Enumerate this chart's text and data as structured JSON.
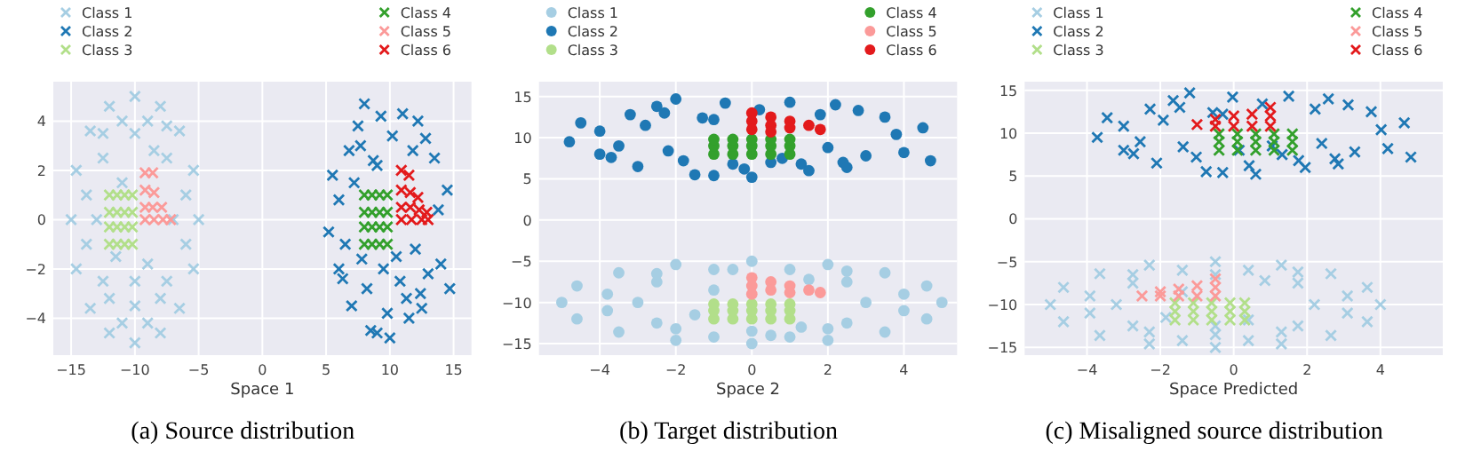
{
  "chart_data": [
    {
      "type": "scatter",
      "xlabel": "Space 1",
      "annotations": [
        "(a) Source distribution"
      ],
      "xlim": [
        -16.4,
        16.4
      ],
      "ylim": [
        -5.5,
        5.6
      ],
      "xticks": [
        -15,
        -10,
        -5,
        0,
        5,
        10,
        15
      ],
      "yticks": [
        -4,
        -2,
        0,
        2,
        4
      ],
      "grid": true,
      "legend": "top",
      "marker": "cross",
      "series": [
        {
          "name": "Class 1",
          "color": "#a6cee3",
          "x": [
            -15,
            -14.6,
            -13.5,
            -12,
            -10,
            -8,
            -6.5,
            -5.4,
            -5,
            -5.4,
            -6.5,
            -8,
            -10,
            -12,
            -13.5,
            -14.6,
            -13,
            -12.5,
            -10,
            -7.5,
            -7,
            -7.5,
            -10,
            -12.5,
            -11,
            -9,
            -11.5,
            -8.5,
            -13.8,
            -13.8,
            -6,
            -6,
            -11,
            -9,
            -11,
            -9,
            -10,
            -12,
            -8,
            -12.5,
            -7.5
          ],
          "values": [
            0,
            2,
            3.6,
            4.6,
            5,
            4.6,
            3.6,
            2,
            0,
            -2,
            -3.6,
            -4.6,
            -5,
            -4.6,
            -3.6,
            -2,
            0,
            2.5,
            3.5,
            2.5,
            0,
            -2.5,
            -3.5,
            -2.5,
            1.5,
            -1.8,
            -1.5,
            2.8,
            1,
            -1,
            1,
            -1,
            4,
            4,
            -4.2,
            -4.2,
            -2.5,
            -3.2,
            -3.2,
            3.5,
            3.8
          ]
        },
        {
          "name": "Class 2",
          "color": "#1f78b4",
          "x": [
            5.2,
            5.5,
            6,
            6.3,
            6.8,
            7,
            7.5,
            7.8,
            8,
            8.5,
            8.7,
            9,
            9.3,
            9.5,
            10,
            10.2,
            10.5,
            11,
            11.3,
            11.8,
            12,
            12.4,
            12.8,
            13,
            13.5,
            14,
            14.5,
            14.7,
            6.5,
            7.2,
            8.2,
            9.8,
            11.5,
            12.5,
            13.8,
            6,
            7.7,
            9,
            10.8,
            12.2
          ],
          "values": [
            -0.5,
            1.8,
            0.8,
            -2.4,
            2.8,
            -3.5,
            3.8,
            -1.6,
            4.7,
            -4.5,
            2.4,
            -4.6,
            4.2,
            -2,
            -4.8,
            3.4,
            -1.5,
            4.3,
            -3.2,
            2.8,
            -1.2,
            -3,
            3.3,
            -2.2,
            2.5,
            -1.8,
            1.2,
            -2.8,
            -1,
            1.5,
            -2.8,
            -3.8,
            -4,
            -3.6,
            0.4,
            -2,
            3,
            2.2,
            -2.5,
            4
          ]
        },
        {
          "name": "Class 3",
          "color": "#b2df8a",
          "x": [
            -12,
            -11.4,
            -10.8,
            -10.2,
            -12,
            -11.4,
            -10.8,
            -10.2,
            -12,
            -11.4,
            -10.8,
            -10.2,
            -12,
            -11.4,
            -10.8,
            -10.2
          ],
          "values": [
            -1,
            -1,
            -1,
            -1,
            -0.3,
            -0.3,
            -0.3,
            -0.3,
            0.3,
            0.3,
            0.3,
            0.3,
            1,
            1,
            1,
            1
          ]
        },
        {
          "name": "Class 4",
          "color": "#33a02c",
          "x": [
            8,
            8.6,
            9.2,
            9.8,
            8,
            8.6,
            9.2,
            9.8,
            8,
            8.6,
            9.2,
            9.8,
            8,
            8.6,
            9.2,
            9.8
          ],
          "values": [
            -1,
            -1,
            -1,
            -1,
            -0.3,
            -0.3,
            -0.3,
            -0.3,
            0.3,
            0.3,
            0.3,
            0.3,
            1,
            1,
            1,
            1
          ]
        },
        {
          "name": "Class 5",
          "color": "#fb9a99",
          "x": [
            -9.2,
            -8.6,
            -9.2,
            -8.5,
            -9.2,
            -8.6,
            -7.9,
            -9.2,
            -8.5,
            -7.8,
            -7.2
          ],
          "values": [
            1.9,
            1.9,
            1.2,
            1.1,
            0.5,
            0.5,
            0.5,
            0,
            0,
            0,
            0
          ]
        },
        {
          "name": "Class 6",
          "color": "#e31a1c",
          "x": [
            10.9,
            11.5,
            10.9,
            11.6,
            12.2,
            10.9,
            11.6,
            12.3,
            12.9,
            10.9,
            11.7,
            12.5,
            13
          ],
          "values": [
            2,
            1.8,
            1.2,
            1.1,
            0.9,
            0.5,
            0.5,
            0.4,
            0.3,
            0,
            0,
            0,
            0
          ]
        }
      ]
    },
    {
      "type": "scatter",
      "xlabel": "Space 2",
      "annotations": [
        "(b) Target distribution"
      ],
      "xlim": [
        -5.6,
        5.4
      ],
      "ylim": [
        -16.4,
        16.8
      ],
      "xticks": [
        -4,
        -2,
        0,
        2,
        4
      ],
      "yticks": [
        -15,
        -10,
        -5,
        0,
        5,
        10,
        15
      ],
      "grid": true,
      "legend": "top",
      "marker": "circle",
      "series": [
        {
          "name": "Class 1",
          "color": "#a6cee3",
          "x": [
            -5,
            -4.6,
            -3.5,
            -2,
            0,
            2,
            3.5,
            4.6,
            5,
            4.6,
            3.5,
            2,
            0,
            -2,
            -3.5,
            -4.6,
            -3,
            -2.5,
            -0.5,
            2.5,
            3,
            2.5,
            0,
            -2.5,
            -1,
            1.3,
            -1.5,
            1.5,
            -3.8,
            -3.8,
            4,
            4,
            -1,
            1,
            -1,
            1,
            0.5,
            -2,
            2,
            -2.5,
            2.5
          ],
          "values": [
            -10,
            -8,
            -6.4,
            -5.4,
            -5,
            -5.4,
            -6.4,
            -8,
            -10,
            -12,
            -13.6,
            -14.6,
            -15,
            -14.6,
            -13.6,
            -12,
            -10,
            -7.5,
            -6,
            -7.5,
            -10,
            -12.5,
            -13.5,
            -12.5,
            -8.5,
            -13,
            -11.5,
            -7.2,
            -9,
            -11,
            -9,
            -11,
            -6,
            -6,
            -14.2,
            -14.2,
            -14,
            -13.2,
            -13.2,
            -6.5,
            -6.2
          ]
        },
        {
          "name": "Class 2",
          "color": "#1f78b4",
          "x": [
            -4.8,
            -4.5,
            -4,
            -3.7,
            -3.2,
            -3,
            -2.5,
            -2.2,
            -2,
            -1.5,
            -1.3,
            -1,
            -0.7,
            -0.5,
            0,
            0.2,
            0.5,
            1,
            1.3,
            1.8,
            2,
            2.4,
            2.8,
            3,
            3.5,
            4,
            4.5,
            4.7,
            -3.5,
            -2.8,
            -1.8,
            -0.2,
            1.5,
            2.5,
            3.8,
            -4,
            -2.3,
            -1,
            0.8,
            2.2
          ],
          "values": [
            9.5,
            11.8,
            10.8,
            7.6,
            12.8,
            6.5,
            13.8,
            8.4,
            14.7,
            5.5,
            12.4,
            5.4,
            14.2,
            6.8,
            5.2,
            13.4,
            7,
            14.3,
            6.8,
            12.8,
            8.8,
            7,
            13.3,
            7.8,
            12.5,
            8.2,
            11.2,
            7.2,
            9,
            11.5,
            7.2,
            6.2,
            6,
            6.4,
            10.4,
            8,
            13,
            12.2,
            7.5,
            14
          ]
        },
        {
          "name": "Class 3",
          "color": "#b2df8a",
          "x": [
            -1,
            -0.5,
            0,
            0.5,
            1,
            -1,
            -0.5,
            0,
            0.5,
            1,
            -1,
            -0.5,
            0,
            0.5,
            1
          ],
          "values": [
            -12,
            -12,
            -12,
            -12,
            -12,
            -11,
            -11,
            -11,
            -11,
            -11,
            -10.2,
            -10.2,
            -10.2,
            -10.2,
            -10.2
          ]
        },
        {
          "name": "Class 4",
          "color": "#33a02c",
          "x": [
            -1,
            -0.5,
            0,
            0.5,
            1,
            -1,
            -0.5,
            0,
            0.5,
            1,
            -1,
            -0.5,
            0,
            0.5,
            1
          ],
          "values": [
            8,
            8,
            8,
            8,
            8,
            9,
            9,
            9,
            9,
            9,
            9.8,
            9.8,
            9.8,
            9.8,
            9.8
          ]
        },
        {
          "name": "Class 5",
          "color": "#fb9a99",
          "x": [
            0,
            0,
            0,
            0.5,
            0.5,
            1,
            1,
            1.5,
            1.8
          ],
          "values": [
            -7,
            -8,
            -9,
            -7.5,
            -8.5,
            -8,
            -8.8,
            -8.5,
            -8.8
          ]
        },
        {
          "name": "Class 6",
          "color": "#e31a1c",
          "x": [
            0,
            0,
            0,
            0.5,
            0.5,
            0.5,
            1,
            1,
            1.5,
            1.8
          ],
          "values": [
            13,
            12,
            11,
            12.5,
            11.5,
            10.7,
            12,
            11.2,
            11.5,
            11
          ]
        }
      ]
    },
    {
      "type": "scatter",
      "xlabel": "Space Predicted",
      "annotations": [
        "(c) Misaligned source distribution"
      ],
      "xlim": [
        -5.7,
        5.7
      ],
      "ylim": [
        -15.9,
        16
      ],
      "xticks": [
        -4,
        -2,
        0,
        2,
        4
      ],
      "yticks": [
        -15,
        -10,
        -5,
        0,
        5,
        10,
        15
      ],
      "grid": true,
      "legend": "top",
      "marker": "cross",
      "series": [
        {
          "name": "Class 1",
          "color": "#a6cee3",
          "x": [
            -5,
            -4.64,
            -3.65,
            -2.3,
            -0.5,
            1.3,
            2.65,
            3.64,
            4,
            3.64,
            2.65,
            1.3,
            -0.5,
            -2.3,
            -3.65,
            -4.64,
            -3.2,
            -2.75,
            -0.5,
            1.75,
            2.2,
            1.75,
            -0.5,
            -2.75,
            -1.4,
            0.4,
            -1.85,
            0.85,
            -3.92,
            -3.92,
            3.1,
            3.1,
            -1.4,
            0.4,
            -1.4,
            0.4,
            -0.5,
            -2.3,
            1.3,
            -2.75,
            1.75
          ],
          "values": [
            -10,
            -8,
            -6.4,
            -5.4,
            -5,
            -5.4,
            -6.4,
            -8,
            -10,
            -12,
            -13.6,
            -14.6,
            -15,
            -14.6,
            -13.6,
            -12,
            -10,
            -7.5,
            -6.5,
            -7.5,
            -10,
            -12.5,
            -13.5,
            -12.5,
            -8.5,
            -11.8,
            -11.5,
            -7.2,
            -9,
            -11,
            -9,
            -11,
            -6,
            -6,
            -14.2,
            -14.2,
            -12.5,
            -13.2,
            -13.2,
            -6.5,
            -6.2
          ]
        },
        {
          "name": "Class 2",
          "color": "#1f78b4",
          "x": [
            -3.72,
            -3.45,
            -3,
            -2.73,
            -2.28,
            -2.1,
            -1.65,
            -1.38,
            -1.2,
            -0.75,
            -0.57,
            -0.3,
            -0.03,
            0.15,
            0.6,
            0.78,
            1.05,
            1.5,
            1.77,
            2.22,
            2.4,
            2.76,
            3.12,
            3.3,
            3.75,
            4.2,
            4.65,
            4.83,
            -2.55,
            -1.92,
            -1.02,
            0.42,
            1.95,
            2.85,
            4.02,
            -3,
            -1.47,
            -0.3,
            1.32,
            2.58
          ],
          "values": [
            9.5,
            11.8,
            10.8,
            7.6,
            12.8,
            6.5,
            13.8,
            8.4,
            14.7,
            5.5,
            12.4,
            5.4,
            14.2,
            8,
            5.2,
            13.4,
            8.5,
            14.3,
            6.8,
            12.8,
            8.8,
            7,
            13.3,
            7.8,
            12.5,
            8.2,
            11.2,
            7.2,
            9,
            11.5,
            7.2,
            6.2,
            6,
            6.4,
            10.4,
            8,
            13,
            12.2,
            7.5,
            14
          ]
        },
        {
          "name": "Class 3",
          "color": "#b2df8a",
          "x": [
            -1.6,
            -1.1,
            -0.6,
            -0.1,
            0.3,
            -1.6,
            -1.1,
            -0.6,
            -0.1,
            0.3,
            -1.6,
            -1.1,
            -0.6,
            -0.1,
            0.3
          ],
          "values": [
            -11.8,
            -11.8,
            -11.8,
            -11.8,
            -11.8,
            -10.8,
            -10.8,
            -10.8,
            -10.8,
            -10.8,
            -9.8,
            -9.8,
            -9.8,
            -9.8,
            -9.8
          ]
        },
        {
          "name": "Class 4",
          "color": "#33a02c",
          "x": [
            -0.4,
            0.1,
            0.6,
            1.1,
            1.6,
            -0.4,
            0.1,
            0.6,
            1.1,
            1.6,
            -0.4,
            0.1,
            0.6,
            1.1,
            1.6
          ],
          "values": [
            8,
            8,
            8,
            8,
            8,
            9,
            9,
            9,
            9,
            9,
            9.9,
            9.9,
            9.9,
            9.9,
            9.9
          ]
        },
        {
          "name": "Class 5",
          "color": "#fb9a99",
          "x": [
            -2.5,
            -2,
            -2,
            -1.5,
            -1.5,
            -1,
            -1,
            -0.5,
            -0.5,
            -0.5
          ],
          "values": [
            -9,
            -8.5,
            -9,
            -8.2,
            -9,
            -7.8,
            -9,
            -7,
            -8,
            -9
          ]
        },
        {
          "name": "Class 6",
          "color": "#e31a1c",
          "x": [
            -1,
            -0.5,
            -0.5,
            0,
            0,
            0.5,
            0.5,
            1,
            1,
            1
          ],
          "values": [
            11,
            10.8,
            11.6,
            10.8,
            12,
            10.8,
            12.2,
            10.8,
            12,
            13
          ]
        }
      ]
    }
  ]
}
